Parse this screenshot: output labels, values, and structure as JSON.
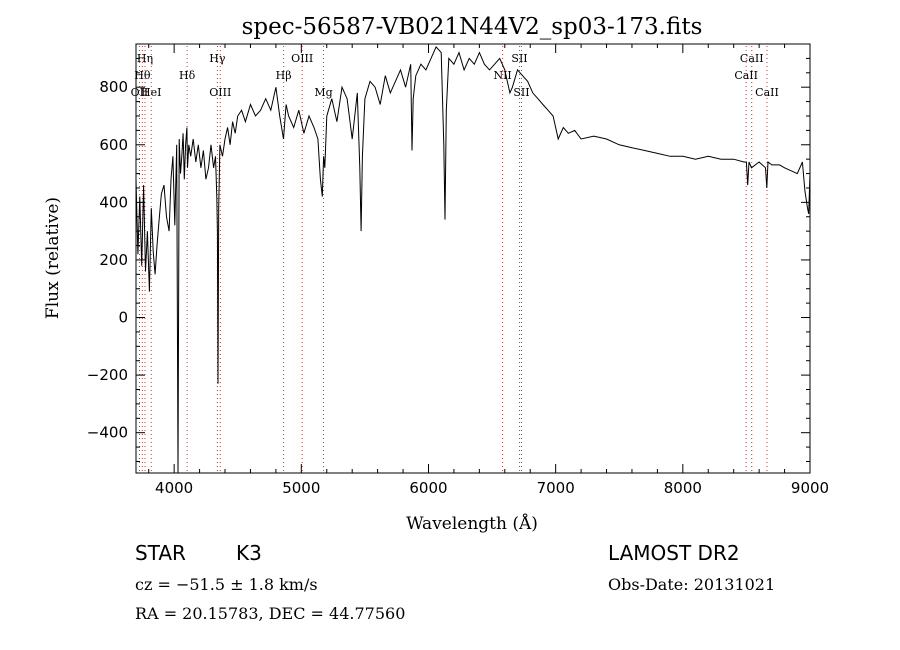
{
  "chart_data": {
    "type": "line",
    "title": "spec-56587-VB021N44V2_sp03-173.fits",
    "xlabel": "Wavelength (Å)",
    "ylabel": "Flux (relative)",
    "xlim": [
      3700,
      9000
    ],
    "ylim": [
      -540,
      950
    ],
    "x_ticks": [
      4000,
      5000,
      6000,
      7000,
      8000,
      9000
    ],
    "y_ticks": [
      -400,
      -200,
      0,
      200,
      400,
      600,
      800
    ],
    "grid": false,
    "legend": "none",
    "line_color": "#000000",
    "marker_line_color": "#cc3333",
    "series": [
      {
        "x": [
          3700,
          3715,
          3730,
          3745,
          3760,
          3775,
          3790,
          3805,
          3820,
          3835,
          3850,
          3865,
          3880,
          3900,
          3920,
          3940,
          3960,
          3975,
          3990,
          4005,
          4020,
          4030,
          4040,
          4050,
          4060,
          4070,
          4080,
          4090,
          4100,
          4105,
          4115,
          4130,
          4150,
          4170,
          4190,
          4210,
          4230,
          4250,
          4270,
          4290,
          4310,
          4325,
          4335,
          4340,
          4345,
          4350,
          4360,
          4380,
          4400,
          4420,
          4440,
          4460,
          4480,
          4500,
          4530,
          4560,
          4600,
          4640,
          4680,
          4720,
          4760,
          4800,
          4830,
          4860,
          4870,
          4880,
          4900,
          4940,
          4980,
          5020,
          5060,
          5100,
          5130,
          5150,
          5165,
          5175,
          5185,
          5200,
          5240,
          5280,
          5320,
          5360,
          5400,
          5440,
          5460,
          5470,
          5480,
          5500,
          5540,
          5580,
          5620,
          5660,
          5700,
          5740,
          5780,
          5820,
          5860,
          5870,
          5880,
          5900,
          5940,
          5980,
          6020,
          6060,
          6100,
          6120,
          6130,
          6140,
          6160,
          6200,
          6240,
          6280,
          6320,
          6360,
          6400,
          6440,
          6480,
          6520,
          6560,
          6600,
          6620,
          6640,
          6660,
          6700,
          6740,
          6780,
          6820,
          6860,
          6900,
          6940,
          6980,
          7020,
          7060,
          7100,
          7150,
          7200,
          7300,
          7400,
          7500,
          7600,
          7700,
          7800,
          7900,
          8000,
          8100,
          8200,
          8300,
          8400,
          8480,
          8500,
          8510,
          8520,
          8540,
          8600,
          8650,
          8660,
          8670,
          8700,
          8760,
          8800,
          8850,
          8900,
          8940,
          8960,
          8980,
          8990,
          9000
        ],
        "y": [
          480,
          220,
          420,
          180,
          460,
          160,
          300,
          90,
          380,
          230,
          150,
          250,
          330,
          430,
          460,
          350,
          300,
          480,
          560,
          320,
          600,
          -540,
          620,
          500,
          560,
          640,
          480,
          600,
          660,
          520,
          600,
          560,
          620,
          540,
          600,
          520,
          580,
          480,
          520,
          600,
          520,
          560,
          420,
          300,
          -230,
          380,
          600,
          560,
          620,
          660,
          600,
          680,
          640,
          700,
          720,
          680,
          740,
          700,
          720,
          760,
          720,
          800,
          700,
          620,
          680,
          740,
          700,
          660,
          720,
          640,
          700,
          660,
          620,
          480,
          420,
          560,
          520,
          700,
          760,
          680,
          800,
          760,
          620,
          780,
          520,
          300,
          560,
          760,
          820,
          800,
          740,
          840,
          780,
          820,
          860,
          800,
          880,
          580,
          760,
          840,
          880,
          860,
          900,
          940,
          920,
          600,
          340,
          720,
          900,
          880,
          920,
          860,
          900,
          880,
          920,
          880,
          860,
          880,
          900,
          860,
          820,
          780,
          800,
          860,
          840,
          820,
          780,
          760,
          740,
          720,
          700,
          620,
          660,
          640,
          650,
          620,
          630,
          620,
          600,
          590,
          580,
          570,
          560,
          560,
          550,
          560,
          550,
          550,
          540,
          540,
          460,
          540,
          520,
          540,
          520,
          450,
          540,
          530,
          530,
          520,
          510,
          500,
          540,
          440,
          380,
          360,
          500
        ],
        "line_color": "#000000"
      }
    ],
    "line_markers": [
      {
        "wavelength": 3727,
        "label": "OII",
        "row": 3
      },
      {
        "wavelength": 3750,
        "label": "Hθ",
        "row": 2
      },
      {
        "wavelength": 3771,
        "label": "Hη",
        "row": 1
      },
      {
        "wavelength": 3820,
        "label": "HeI",
        "row": 3
      },
      {
        "wavelength": 4102,
        "label": "Hδ",
        "row": 2
      },
      {
        "wavelength": 4340,
        "label": "Hγ",
        "row": 1
      },
      {
        "wavelength": 4363,
        "label": "OIII",
        "row": 3
      },
      {
        "wavelength": 4861,
        "label": "Hβ",
        "row": 2
      },
      {
        "wavelength": 5007,
        "label": "OIII",
        "row": 1
      },
      {
        "wavelength": 5175,
        "label": "Mg",
        "row": 3
      },
      {
        "wavelength": 6583,
        "label": "NII",
        "row": 2
      },
      {
        "wavelength": 6716,
        "label": "SII",
        "row": 1
      },
      {
        "wavelength": 6731,
        "label": "SII",
        "row": 3
      },
      {
        "wavelength": 8498,
        "label": "CaII",
        "row": 2
      },
      {
        "wavelength": 8542,
        "label": "CaII",
        "row": 1
      },
      {
        "wavelength": 8662,
        "label": "CaII",
        "row": 3
      }
    ]
  },
  "info": {
    "object_type": "STAR",
    "subclass": "K3",
    "survey": "LAMOST DR2",
    "cz_line": "cz = −51.5 ± 1.8 km/s",
    "obs_date": "Obs-Date: 20131021",
    "coords": "RA =  20.15783, DEC =  44.77560"
  }
}
